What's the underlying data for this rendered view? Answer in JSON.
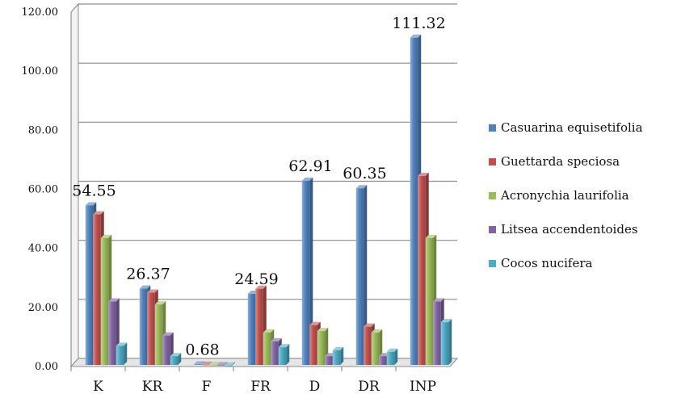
{
  "chart_data": {
    "type": "bar",
    "title": "",
    "xlabel": "",
    "ylabel": "",
    "ylim": [
      0,
      120
    ],
    "yticks": [
      "0.00",
      "20.00",
      "40.00",
      "60.00",
      "80.00",
      "100.00",
      "120.00"
    ],
    "grid": true,
    "legend_position": "right",
    "categories": [
      "K",
      "KR",
      "F",
      "FR",
      "D",
      "DR",
      "INP"
    ],
    "series": [
      {
        "name": "Casuarina equisetifolia",
        "color": "#4F81BD",
        "values": [
          54.55,
          26.37,
          0.68,
          24.59,
          62.91,
          60.35,
          111.32
        ]
      },
      {
        "name": "Guettarda speciosa",
        "color": "#C0504D",
        "values": [
          51.5,
          25.0,
          0.6,
          26.3,
          14.0,
          13.5,
          64.5
        ]
      },
      {
        "name": "Acronychia laurifolia",
        "color": "#9BBB59",
        "values": [
          43.5,
          21.0,
          0.5,
          11.5,
          12.0,
          11.5,
          43.5
        ]
      },
      {
        "name": "Litsea accendentoides",
        "color": "#8064A2",
        "values": [
          22.0,
          10.5,
          0.4,
          8.5,
          3.5,
          3.5,
          22.0
        ]
      },
      {
        "name": "Cocos nucifera",
        "color": "#4BACC6",
        "values": [
          7.0,
          3.5,
          0.3,
          6.5,
          5.5,
          5.0,
          15.0
        ]
      }
    ],
    "data_labels": [
      "54.55",
      "26.37",
      "0.68",
      "24.59",
      "62.91",
      "60.35",
      "111.32"
    ]
  }
}
